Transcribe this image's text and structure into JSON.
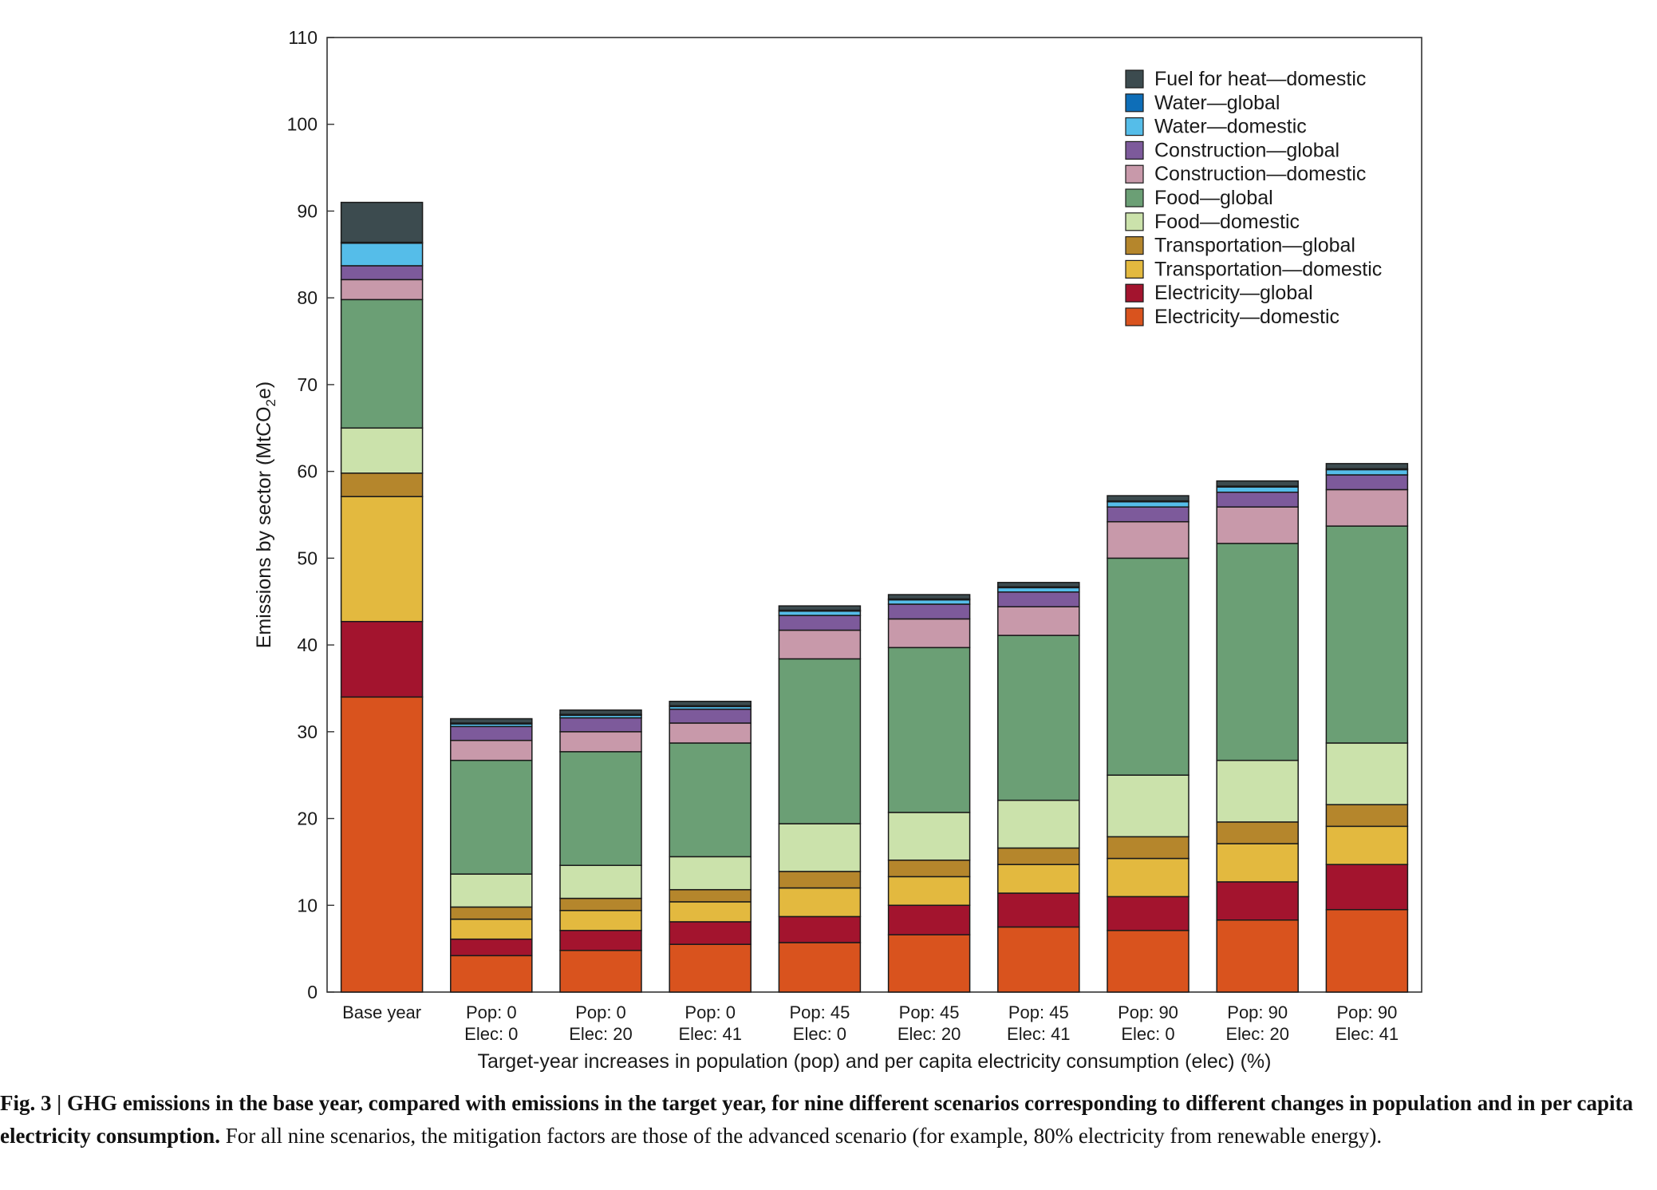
{
  "chart_data": {
    "type": "bar",
    "stacked": true,
    "ylabel_main": "Emissions by sector (MtCO",
    "ylabel_sub": "2",
    "ylabel_tail": "e)",
    "xlabel": "Target-year increases in population (pop) and per capita electricity consumption (elec) (%)",
    "ylim": [
      0,
      110
    ],
    "yticks": [
      "0",
      "10",
      "20",
      "30",
      "40",
      "50",
      "60",
      "70",
      "80",
      "90",
      "100",
      "110"
    ],
    "legend_position": "top-right",
    "categories": [
      [
        "Base year",
        ""
      ],
      [
        "Pop: 0",
        "Elec: 0"
      ],
      [
        "Pop: 0",
        "Elec: 20"
      ],
      [
        "Pop: 0",
        "Elec: 41"
      ],
      [
        "Pop: 45",
        "Elec: 0"
      ],
      [
        "Pop: 45",
        "Elec: 20"
      ],
      [
        "Pop: 45",
        "Elec: 41"
      ],
      [
        "Pop: 90",
        "Elec: 0"
      ],
      [
        "Pop: 90",
        "Elec: 20"
      ],
      [
        "Pop: 90",
        "Elec: 41"
      ]
    ],
    "series": [
      {
        "name": "Electricity—domestic",
        "color": "#d9531e",
        "values": [
          34.0,
          4.2,
          4.8,
          5.5,
          5.7,
          6.6,
          7.5,
          7.1,
          8.3,
          9.5
        ]
      },
      {
        "name": "Electricity—global",
        "color": "#a3142e",
        "values": [
          8.7,
          1.9,
          2.3,
          2.6,
          3.0,
          3.4,
          3.9,
          3.9,
          4.4,
          5.2
        ]
      },
      {
        "name": "Transportation—domestic",
        "color": "#e3b93f",
        "values": [
          14.4,
          2.3,
          2.3,
          2.3,
          3.3,
          3.3,
          3.3,
          4.4,
          4.4,
          4.4
        ]
      },
      {
        "name": "Transportation—global",
        "color": "#b5862c",
        "values": [
          2.7,
          1.4,
          1.4,
          1.4,
          1.9,
          1.9,
          1.9,
          2.5,
          2.5,
          2.5
        ]
      },
      {
        "name": "Food—domestic",
        "color": "#cbe2ab",
        "values": [
          5.2,
          3.8,
          3.8,
          3.8,
          5.5,
          5.5,
          5.5,
          7.1,
          7.1,
          7.1
        ]
      },
      {
        "name": "Food—global",
        "color": "#6b9f75",
        "values": [
          14.8,
          13.1,
          13.1,
          13.1,
          19.0,
          19.0,
          19.0,
          25.0,
          25.0,
          25.0
        ]
      },
      {
        "name": "Construction—domestic",
        "color": "#c899aa",
        "values": [
          2.3,
          2.3,
          2.3,
          2.3,
          3.3,
          3.3,
          3.3,
          4.2,
          4.2,
          4.2
        ]
      },
      {
        "name": "Construction—global",
        "color": "#7d5a9b",
        "values": [
          1.6,
          1.6,
          1.6,
          1.6,
          1.7,
          1.7,
          1.7,
          1.7,
          1.7,
          1.7
        ]
      },
      {
        "name": "Water—domestic",
        "color": "#55bde9",
        "values": [
          2.6,
          0.3,
          0.3,
          0.3,
          0.5,
          0.5,
          0.5,
          0.6,
          0.6,
          0.6
        ]
      },
      {
        "name": "Water—global",
        "color": "#0e6eb8",
        "values": [
          0.1,
          0.1,
          0.1,
          0.1,
          0.1,
          0.1,
          0.1,
          0.1,
          0.1,
          0.1
        ]
      },
      {
        "name": "Fuel for heat—domestic",
        "color": "#3c4b4f",
        "values": [
          4.6,
          0.5,
          0.5,
          0.5,
          0.5,
          0.5,
          0.5,
          0.6,
          0.6,
          0.6
        ]
      }
    ]
  },
  "caption": {
    "lead": "Fig. 3 | GHG emissions in the base year, compared with emissions in the target year, for nine different scenarios corresponding to different changes in population and in per capita electricity consumption.",
    "rest": " For all nine scenarios, the mitigation factors are those of the advanced scenario (for example, 80% electricity from renewable energy)."
  }
}
